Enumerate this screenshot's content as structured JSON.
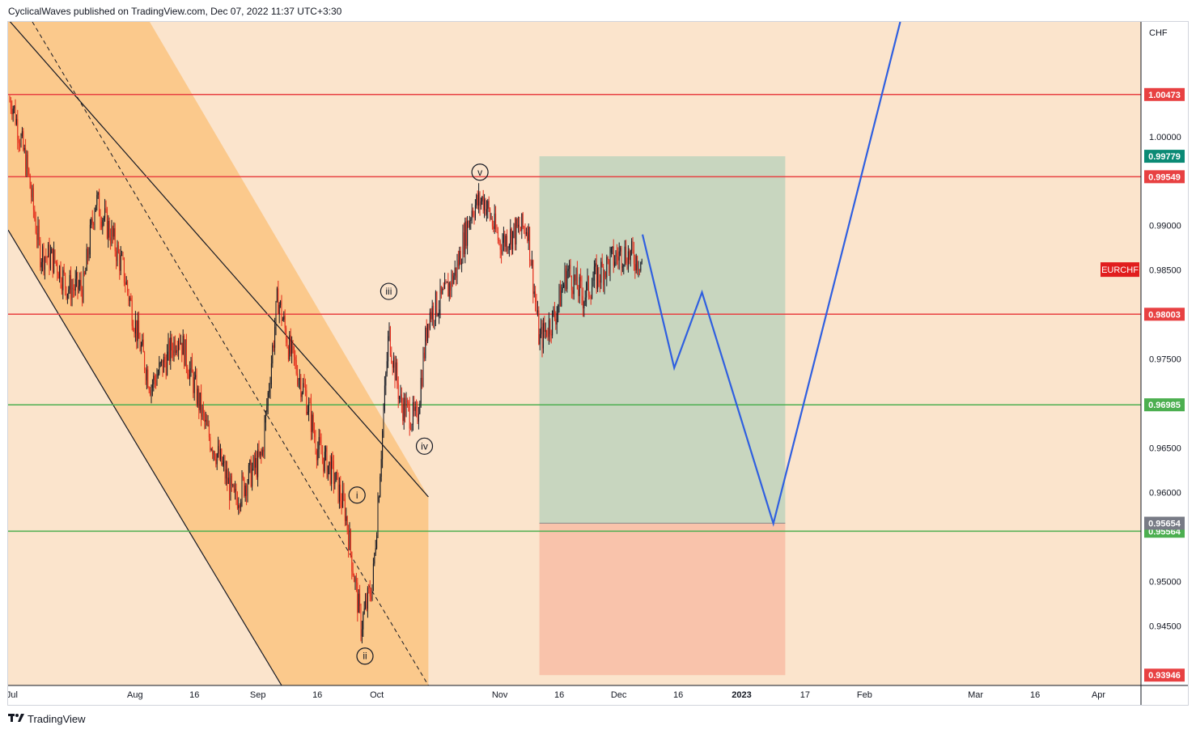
{
  "header": {
    "publisher": "CyclicalWaves published on TradingView.com, Dec 07, 2022 11:37 UTC+3:30"
  },
  "footer": {
    "brand": "TradingView"
  },
  "colors": {
    "background": "#fbe4cc",
    "channel_fill": "#fbc98c",
    "resistance": "#e84142",
    "support": "#4caf50",
    "candle_up": "#131722",
    "candle_down": "#e32b1a",
    "forecast": "#2f5fe0",
    "target_zone": "#c8d6bf",
    "stop_zone": "#f9c3ab",
    "symbol_tag": "#e11d1d"
  },
  "chart_data": {
    "type": "candlestick",
    "symbol": "EURCHF",
    "currency": "CHF",
    "x_ticks": [
      "Jul",
      "Aug",
      "16",
      "Sep",
      "16",
      "Oct",
      "Nov",
      "16",
      "Dec",
      "16",
      "2023",
      "17",
      "Feb",
      "Mar",
      "16",
      "Apr"
    ],
    "y_ticks": [
      1.0,
      0.99,
      0.985,
      0.975,
      0.965,
      0.96,
      0.95,
      0.945
    ],
    "y_tick_labels": [
      "1.00000",
      "0.99000",
      "0.98500",
      "0.97500",
      "0.96500",
      "0.96000",
      "0.95000",
      "0.94500"
    ],
    "ylim": [
      0.9383,
      1.0129
    ],
    "horizontal_levels": [
      {
        "value": 1.00473,
        "label": "1.00473",
        "kind": "resistance"
      },
      {
        "value": 0.99549,
        "label": "0.99549",
        "kind": "resistance"
      },
      {
        "value": 0.98003,
        "label": "0.98003",
        "kind": "resistance"
      },
      {
        "value": 0.96985,
        "label": "0.96985",
        "kind": "support"
      },
      {
        "value": 0.95564,
        "label": "0.95564",
        "kind": "support"
      }
    ],
    "position_tool": {
      "target_label": "0.99779",
      "target": 0.99779,
      "entry_label": "0.95654",
      "entry": 0.95654,
      "stop_label": "0.93946",
      "stop": 0.93946
    },
    "wave_labels": [
      "i",
      "ii",
      "iii",
      "iv",
      "v"
    ],
    "price_path": [
      [
        "Jul 1",
        1.004
      ],
      [
        "Jul 5",
        0.996
      ],
      [
        "Jul 8",
        0.987
      ],
      [
        "Jul 12",
        0.986
      ],
      [
        "Jul 15",
        0.983
      ],
      [
        "Jul 19",
        0.983
      ],
      [
        "Jul 22",
        0.993
      ],
      [
        "Jul 26",
        0.989
      ],
      [
        "Jul 29",
        0.985
      ],
      [
        "Aug 2",
        0.977
      ],
      [
        "Aug 5",
        0.972
      ],
      [
        "Aug 9",
        0.975
      ],
      [
        "Aug 12",
        0.978
      ],
      [
        "Aug 16",
        0.972
      ],
      [
        "Aug 19",
        0.967
      ],
      [
        "Aug 23",
        0.963
      ],
      [
        "Aug 26",
        0.959
      ],
      [
        "Aug 30",
        0.962
      ],
      [
        "Sep 2",
        0.964
      ],
      [
        "Sep 6",
        0.982
      ],
      [
        "Sep 9",
        0.976
      ],
      [
        "Sep 13",
        0.971
      ],
      [
        "Sep 16",
        0.965
      ],
      [
        "Sep 20",
        0.962
      ],
      [
        "Sep 23",
        0.958
      ],
      [
        "Sep 27",
        0.945
      ],
      [
        "Sep 30",
        0.95
      ],
      [
        "Oct 4",
        0.978
      ],
      [
        "Oct 7",
        0.97
      ],
      [
        "Oct 11",
        0.968
      ],
      [
        "Oct 14",
        0.98
      ],
      [
        "Oct 18",
        0.982
      ],
      [
        "Oct 21",
        0.985
      ],
      [
        "Oct 25",
        0.992
      ],
      [
        "Oct 28",
        0.993
      ],
      [
        "Nov 1",
        0.988
      ],
      [
        "Nov 4",
        0.989
      ],
      [
        "Nov 8",
        0.99
      ],
      [
        "Nov 11",
        0.977
      ],
      [
        "Nov 15",
        0.98
      ],
      [
        "Nov 18",
        0.985
      ],
      [
        "Nov 22",
        0.982
      ],
      [
        "Nov 25",
        0.984
      ],
      [
        "Nov 29",
        0.986
      ],
      [
        "Dec 2",
        0.987
      ],
      [
        "Dec 7",
        0.986
      ]
    ],
    "forecast_path": [
      [
        "Dec 7",
        0.989
      ],
      [
        "Dec 15",
        0.974
      ],
      [
        "Dec 22",
        0.9825
      ],
      [
        "Jan 9",
        0.9565
      ],
      [
        "Feb 10",
        1.0129
      ]
    ]
  }
}
